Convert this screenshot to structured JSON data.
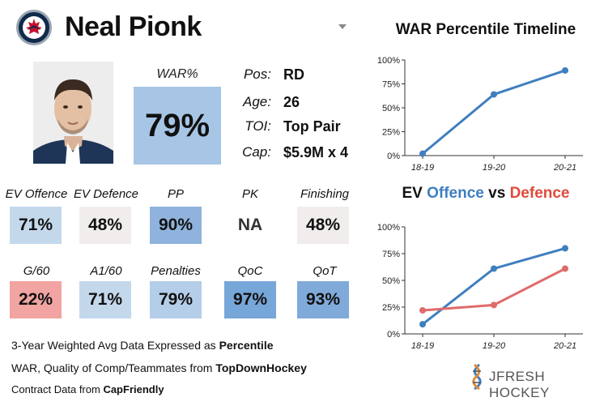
{
  "header": {
    "name": "Neal Pionk"
  },
  "war": {
    "label": "WAR%",
    "value": "79%"
  },
  "info": [
    {
      "label": "Pos:",
      "value": "RD"
    },
    {
      "label": "Age:",
      "value": "26"
    },
    {
      "label": "TOI:",
      "value": "Top Pair"
    },
    {
      "label": "Cap:",
      "value": "$5.9M x 4"
    }
  ],
  "tiles_row1": [
    {
      "label": "EV Offence",
      "value": "71%",
      "color": "#c4d8ec"
    },
    {
      "label": "EV Defence",
      "value": "48%",
      "color": "#f2eded"
    },
    {
      "label": "PP",
      "value": "90%",
      "color": "#8fb3dd"
    },
    {
      "label": "PK",
      "value": "NA",
      "color": "#ffffff"
    },
    {
      "label": "Finishing",
      "value": "48%",
      "color": "#f2eded"
    }
  ],
  "tiles_row2": [
    {
      "label": "G/60",
      "value": "22%",
      "color": "#f1a4a1"
    },
    {
      "label": "A1/60",
      "value": "71%",
      "color": "#c4d8ec"
    },
    {
      "label": "Penalties",
      "value": "79%",
      "color": "#b4cde8"
    },
    {
      "label": "QoC",
      "value": "97%",
      "color": "#77a6d8"
    },
    {
      "label": "QoT",
      "value": "93%",
      "color": "#7faad9"
    }
  ],
  "footnotes": {
    "line1_text": "3-Year Weighted Avg Data Expressed as ",
    "line1_bold": "Percentile",
    "line2_text": "WAR, Quality of Comp/Teammates from ",
    "line2_bold": "TopDownHockey",
    "line3_text": "Contract Data from ",
    "line3_bold": "CapFriendly"
  },
  "brand": "JFRESH HOCKEY",
  "chart_data": [
    {
      "type": "line",
      "title": "WAR Percentile Timeline",
      "categories": [
        "18-19",
        "19-20",
        "20-21"
      ],
      "series": [
        {
          "values": [
            2,
            64,
            89
          ],
          "color": "#3f7fbf"
        }
      ],
      "ylim": [
        0,
        100
      ],
      "yticks": [
        "0%",
        "25%",
        "50%",
        "75%",
        "100%"
      ],
      "grid": false
    },
    {
      "type": "line",
      "title_parts": [
        "EV ",
        "Offence",
        " vs ",
        "Defence"
      ],
      "title_colors": [
        "#111111",
        "#3f7fbf",
        "#111111",
        "#e04a3c"
      ],
      "categories": [
        "18-19",
        "19-20",
        "20-21"
      ],
      "series": [
        {
          "name": "Offence",
          "values": [
            9,
            61,
            80
          ],
          "color": "#3f7fbf"
        },
        {
          "name": "Defence",
          "values": [
            22,
            27,
            61
          ],
          "color": "#e06b6b"
        }
      ],
      "ylim": [
        0,
        100
      ],
      "yticks": [
        "0%",
        "25%",
        "50%",
        "75%",
        "100%"
      ],
      "grid": false
    }
  ]
}
